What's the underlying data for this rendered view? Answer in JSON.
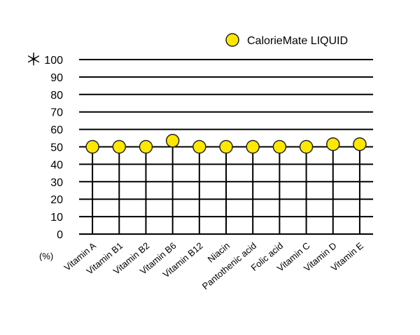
{
  "chart_data": {
    "type": "scatter",
    "style": "lollipop",
    "categories": [
      "Vitamin A",
      "Vitamin B1",
      "Vitamin B2",
      "Vitamin B6",
      "Vitamin B12",
      "Niacin",
      "Pantothenic acid",
      "Folic acid",
      "Vitamin C",
      "Vitamin D",
      "Vitamin E"
    ],
    "series": [
      {
        "name": "CalorieMate LIQUID",
        "values": [
          50,
          50,
          50,
          53.5,
          50,
          50,
          50,
          50,
          50,
          51.5,
          51.5
        ],
        "color": "#ffe800"
      }
    ],
    "ylim": [
      0,
      100
    ],
    "yticks": [
      0,
      10,
      20,
      30,
      40,
      50,
      60,
      70,
      80,
      90,
      100
    ],
    "ylabel": "(%)",
    "ymark": "＊",
    "grid": true,
    "legend": "top-right"
  }
}
